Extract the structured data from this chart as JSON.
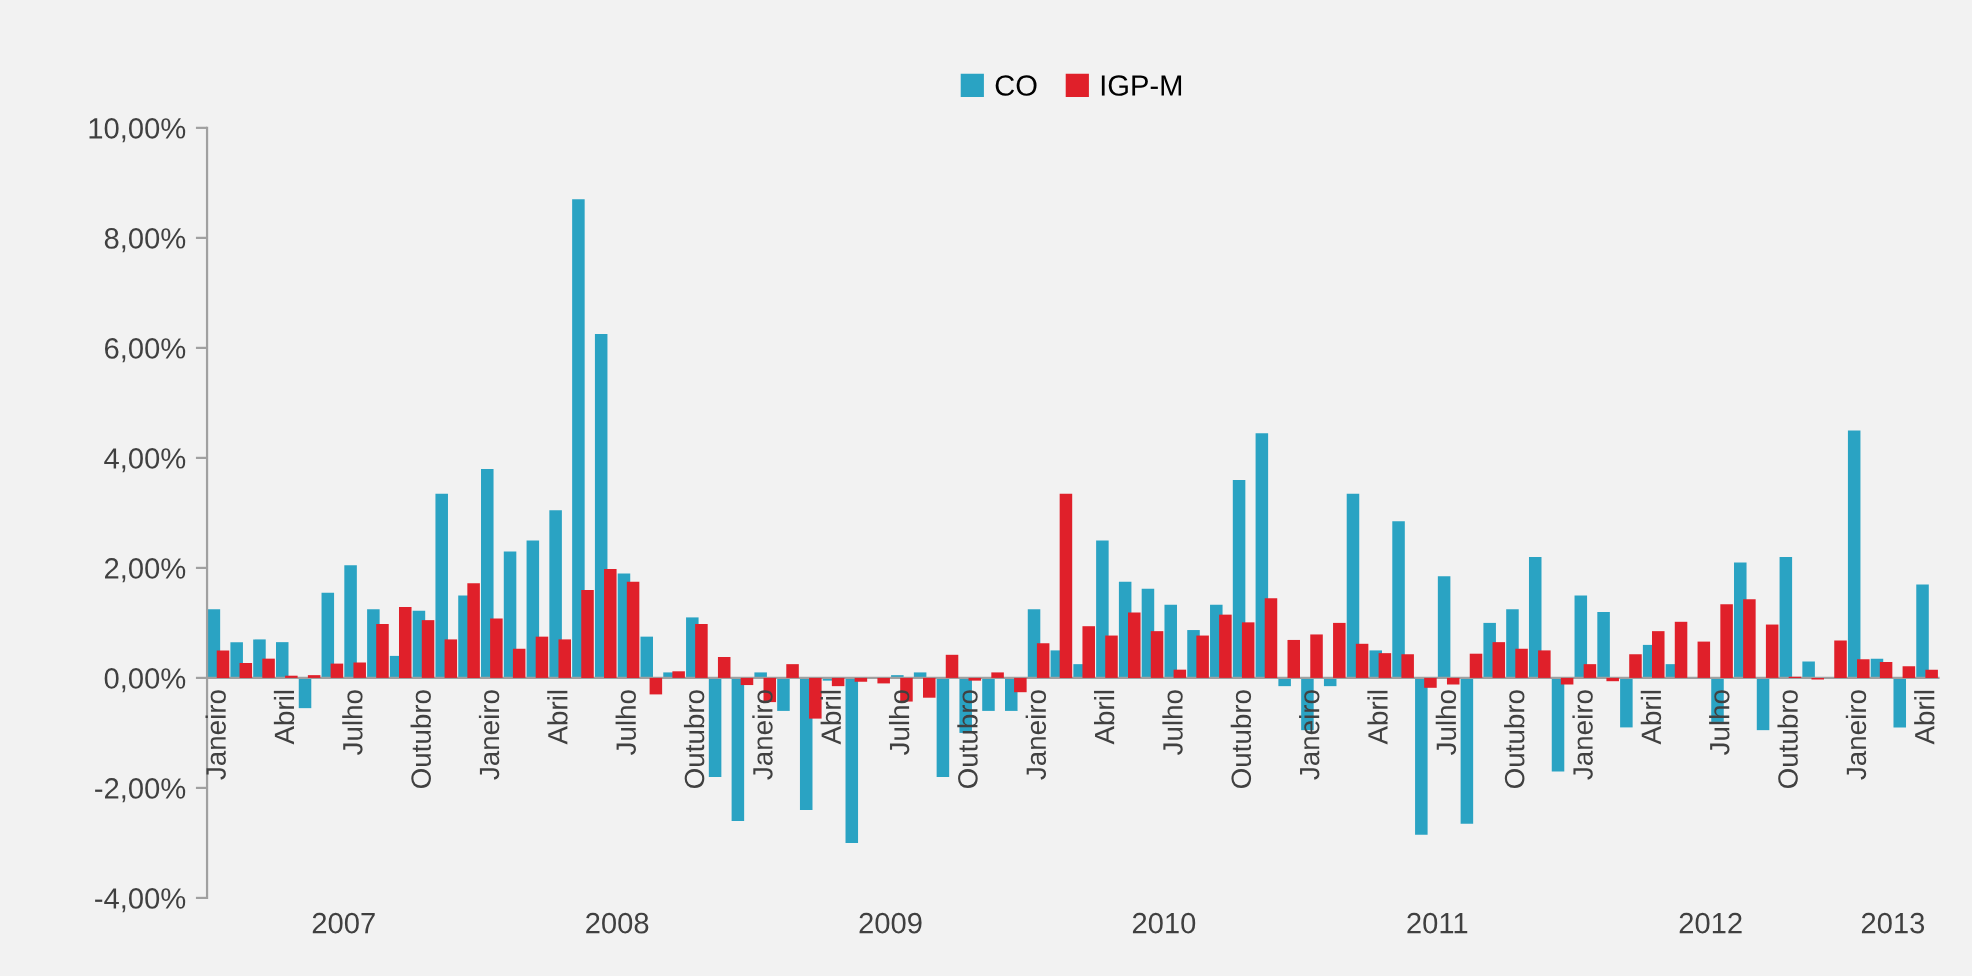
{
  "chart_data": {
    "type": "bar",
    "categories": [
      "Janeiro",
      null,
      null,
      "Abril",
      null,
      null,
      "Julho",
      null,
      null,
      "Outubro",
      null,
      null,
      "Janeiro",
      null,
      null,
      "Abril",
      null,
      null,
      "Julho",
      null,
      null,
      "Outubro",
      null,
      null,
      "Janeiro",
      null,
      null,
      "Abril",
      null,
      null,
      "Julho",
      null,
      null,
      "Outubro",
      null,
      null,
      "Janeiro",
      null,
      null,
      "Abril",
      null,
      null,
      "Julho",
      null,
      null,
      "Outubro",
      null,
      null,
      "Janeiro",
      null,
      null,
      "Abril",
      null,
      null,
      "Julho",
      null,
      null,
      "Outubro",
      null,
      null,
      "Janeiro",
      null,
      null,
      "Abril",
      null,
      null,
      "Julho",
      null,
      null,
      "Outubro",
      null,
      null,
      "Janeiro",
      null,
      null,
      "Abril"
    ],
    "series": [
      {
        "name": "CO",
        "color": "#2aa3c3",
        "values": [
          1.25,
          0.65,
          0.7,
          0.65,
          -0.55,
          1.55,
          2.05,
          1.25,
          0.4,
          1.22,
          3.35,
          1.5,
          3.8,
          2.3,
          2.5,
          3.05,
          8.7,
          6.25,
          1.9,
          0.75,
          0.1,
          1.1,
          -1.8,
          -2.6,
          0.1,
          -0.6,
          -2.4,
          -0.05,
          -3.0,
          0.0,
          0.05,
          0.1,
          -1.8,
          -1.0,
          -0.6,
          -0.6,
          1.25,
          0.5,
          0.25,
          2.5,
          1.75,
          1.62,
          1.33,
          0.87,
          1.33,
          3.6,
          4.45,
          -0.15,
          -0.95,
          -0.15,
          3.35,
          0.5,
          2.85,
          -2.85,
          1.85,
          -2.65,
          1.0,
          1.25,
          2.2,
          -1.7,
          1.5,
          1.2,
          -0.9,
          0.6,
          0.25,
          0.0,
          -0.8,
          2.1,
          -0.95,
          2.2,
          0.3,
          0.0,
          4.5,
          0.35,
          -0.9,
          1.7
        ]
      },
      {
        "name": "IGP-M",
        "color": "#e0202a",
        "values": [
          0.5,
          0.27,
          0.35,
          0.04,
          0.05,
          0.26,
          0.28,
          0.98,
          1.29,
          1.05,
          0.7,
          1.72,
          1.08,
          0.53,
          0.75,
          0.7,
          1.6,
          1.98,
          1.75,
          -0.3,
          0.12,
          0.98,
          0.38,
          -0.13,
          -0.44,
          0.25,
          -0.74,
          -0.15,
          -0.07,
          -0.1,
          -0.43,
          -0.36,
          0.42,
          -0.05,
          0.1,
          -0.26,
          0.63,
          3.35,
          0.94,
          0.77,
          1.19,
          0.85,
          0.15,
          0.77,
          1.15,
          1.01,
          1.45,
          0.69,
          0.79,
          1.0,
          0.62,
          0.45,
          0.43,
          -0.18,
          -0.12,
          0.44,
          0.65,
          0.53,
          0.5,
          -0.12,
          0.25,
          -0.06,
          0.43,
          0.85,
          1.02,
          0.66,
          1.34,
          1.43,
          0.97,
          0.02,
          -0.03,
          0.68,
          0.34,
          0.29,
          0.21,
          0.15
        ]
      }
    ],
    "ylim": [
      -4,
      10
    ],
    "yticks": [
      {
        "value": -4,
        "label": "-4,00%"
      },
      {
        "value": -2,
        "label": "-2,00%"
      },
      {
        "value": 0,
        "label": "0,00%"
      },
      {
        "value": 2,
        "label": "2,00%"
      },
      {
        "value": 4,
        "label": "4,00%"
      },
      {
        "value": 6,
        "label": "6,00%"
      },
      {
        "value": 8,
        "label": "8,00%"
      },
      {
        "value": 10,
        "label": "10,00%"
      }
    ],
    "annotations": [
      "2007",
      "2008",
      "2009",
      "2010",
      "2011",
      "2012",
      "2013"
    ],
    "legend": "top",
    "grid": false
  }
}
